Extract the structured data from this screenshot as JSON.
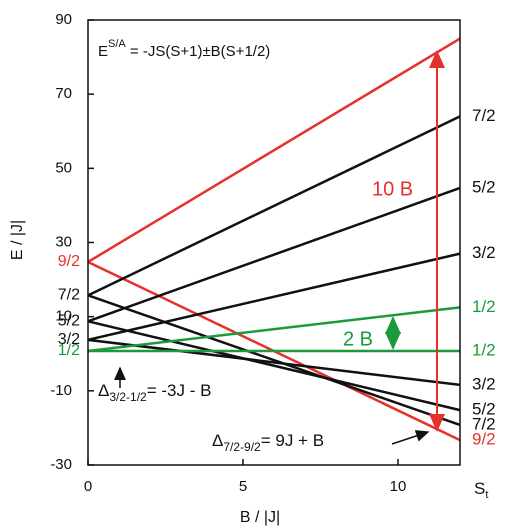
{
  "chart_data": {
    "type": "line",
    "x_label": "B / |J|",
    "y_label": "E / |J|",
    "xlim": [
      0,
      12
    ],
    "ylim": [
      -30,
      90
    ],
    "xticks": [
      0,
      5,
      10
    ],
    "yticks": [
      -30,
      -10,
      10,
      30,
      50,
      70,
      90
    ],
    "x": [
      0,
      12
    ],
    "series": [
      {
        "color": "#e8302a",
        "values": [
          24.75,
          85
        ],
        "start_label": "9/2"
      },
      {
        "color": "#e8302a",
        "values": [
          24.75,
          -23.3
        ],
        "end_label": "9/2"
      },
      {
        "color": "#111111",
        "values": [
          15.75,
          64
        ],
        "start_label": "7/2",
        "end_label": "7/2"
      },
      {
        "color": "#111111",
        "values": [
          15.75,
          -19.2
        ],
        "end_label": "7/2"
      },
      {
        "color": "#111111",
        "values": [
          8.75,
          44.7
        ],
        "start_label": "5/2",
        "end_label": "5/2"
      },
      {
        "color": "#111111",
        "values": [
          8.75,
          -15.2
        ],
        "end_label": "5/2"
      },
      {
        "color": "#111111",
        "values": [
          3.75,
          27
        ],
        "start_label": "3/2",
        "end_label": "3/2"
      },
      {
        "color": "#111111",
        "values": [
          3.75,
          -8.4
        ],
        "end_label": "3/2"
      },
      {
        "color": "#1a9a3a",
        "values": [
          0.75,
          12.5
        ],
        "end_label": "1/2"
      },
      {
        "color": "#1a9a3a",
        "values": [
          0.75,
          0.75
        ],
        "start_label": "1/2",
        "end_label": "1/2"
      }
    ],
    "end_header": {
      "text": "S",
      "sub": "t"
    },
    "annotations": [
      {
        "text": "E",
        "sup": "S/A",
        "text2": " = -JS(S+1)±B(S+1/2)"
      },
      {
        "text": "10 B",
        "color": "#e8302a"
      },
      {
        "text": "2 B",
        "color": "#1a9a3a"
      },
      {
        "text": "Δ",
        "sub": "3/2-1/2",
        "text2": "= -3J - B"
      },
      {
        "text": "Δ",
        "sub": "7/2-9/2",
        "text2": "= 9J + B"
      }
    ]
  }
}
